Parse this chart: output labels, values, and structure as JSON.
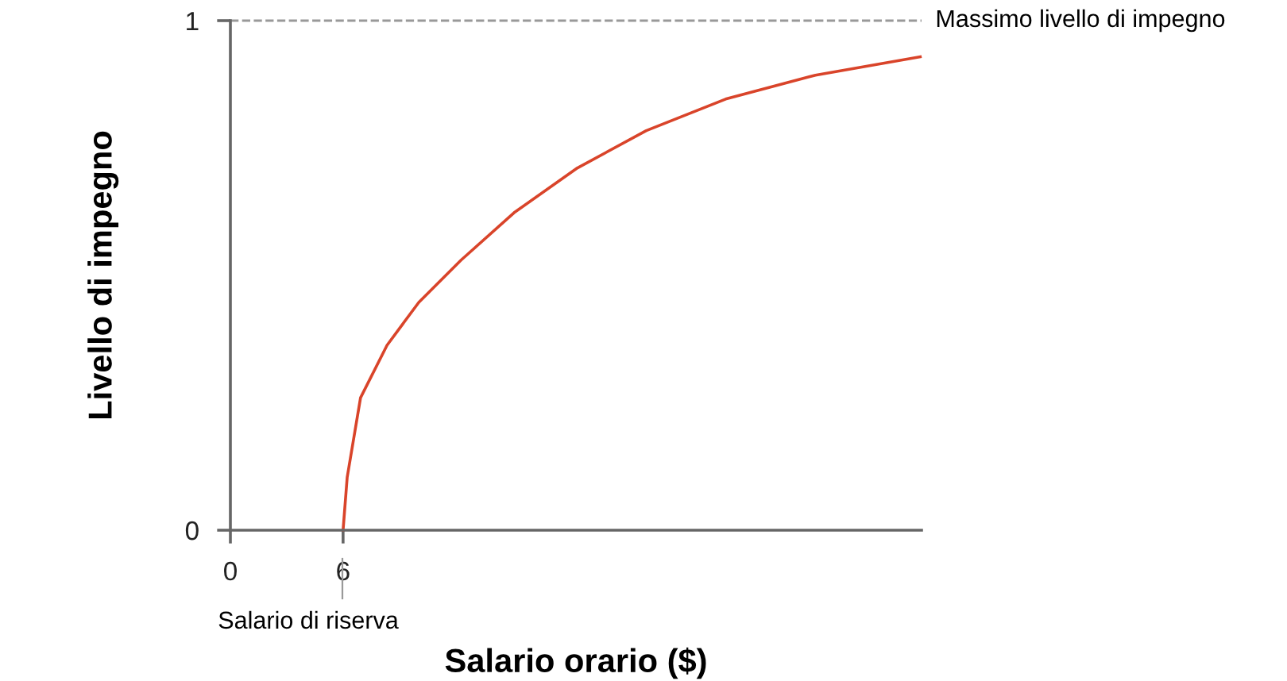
{
  "chart_data": {
    "type": "line",
    "xlabel": "Salario orario ($)",
    "ylabel": "Livello di impegno",
    "xlim": [
      0,
      36.8
    ],
    "ylim": [
      0,
      1
    ],
    "xticks": [
      0,
      6
    ],
    "yticks": [
      0,
      1
    ],
    "grid": false,
    "legend": false,
    "marker": "none",
    "line_style": "solid",
    "series": [
      {
        "color": "#d9442a",
        "x": [
          6,
          6.22,
          6.93,
          8.34,
          10.03,
          12.28,
          15.1,
          18.48,
          22.14,
          26.37,
          31.15,
          36.73
        ],
        "values": [
          0,
          0.104,
          0.26,
          0.363,
          0.447,
          0.53,
          0.623,
          0.711,
          0.784,
          0.846,
          0.893,
          0.929
        ]
      }
    ],
    "ref_lines": [
      {
        "axis": "y",
        "value": 1,
        "label": "Massimo livello di impegno",
        "color": "#999999",
        "line_style": "dashed"
      }
    ],
    "annotations": [
      "Salario di riserva"
    ]
  }
}
